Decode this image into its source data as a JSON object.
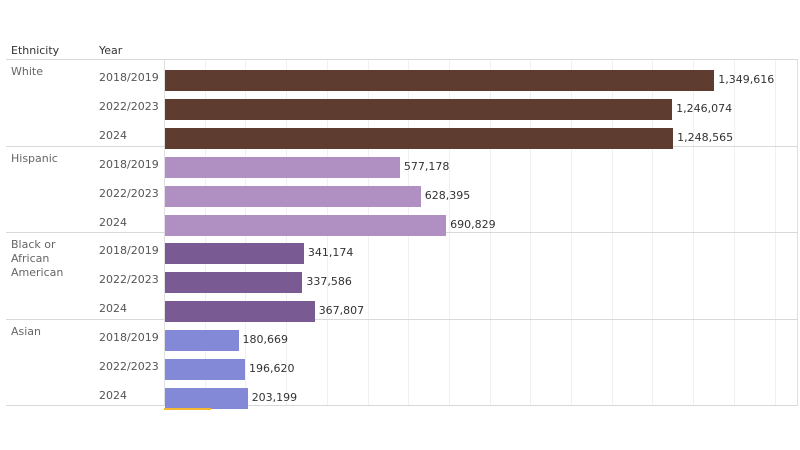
{
  "chart_data": {
    "type": "bar",
    "orientation": "horizontal",
    "title": "",
    "column_headers": [
      "Ethnicity",
      "Year"
    ],
    "groups": [
      {
        "ethnicity": "White",
        "color": "#5e3c30",
        "rows": [
          {
            "year": "2018/2019",
            "value": 1349616,
            "label": "1,349,616"
          },
          {
            "year": "2022/2023",
            "value": 1246074,
            "label": "1,246,074"
          },
          {
            "year": "2024",
            "value": 1248565,
            "label": "1,248,565"
          }
        ]
      },
      {
        "ethnicity": "Hispanic",
        "color": "#b08fc3",
        "rows": [
          {
            "year": "2018/2019",
            "value": 577178,
            "label": "577,178"
          },
          {
            "year": "2022/2023",
            "value": 628395,
            "label": "628,395"
          },
          {
            "year": "2024",
            "value": 690829,
            "label": "690,829"
          }
        ]
      },
      {
        "ethnicity": "Black or African American",
        "color": "#7a5a92",
        "rows": [
          {
            "year": "2018/2019",
            "value": 341174,
            "label": "341,174"
          },
          {
            "year": "2022/2023",
            "value": 337586,
            "label": "337,586"
          },
          {
            "year": "2024",
            "value": 367807,
            "label": "367,807"
          }
        ]
      },
      {
        "ethnicity": "Asian",
        "color": "#8389d6",
        "rows": [
          {
            "year": "2018/2019",
            "value": 180669,
            "label": "180,669"
          },
          {
            "year": "2022/2023",
            "value": 196620,
            "label": "196,620"
          },
          {
            "year": "2024",
            "value": 203199,
            "label": "203,199"
          }
        ]
      }
    ],
    "xlim": [
      0,
      1550000
    ],
    "grid_step": 100000,
    "grid": true,
    "accent_color": "#f5b82e"
  }
}
